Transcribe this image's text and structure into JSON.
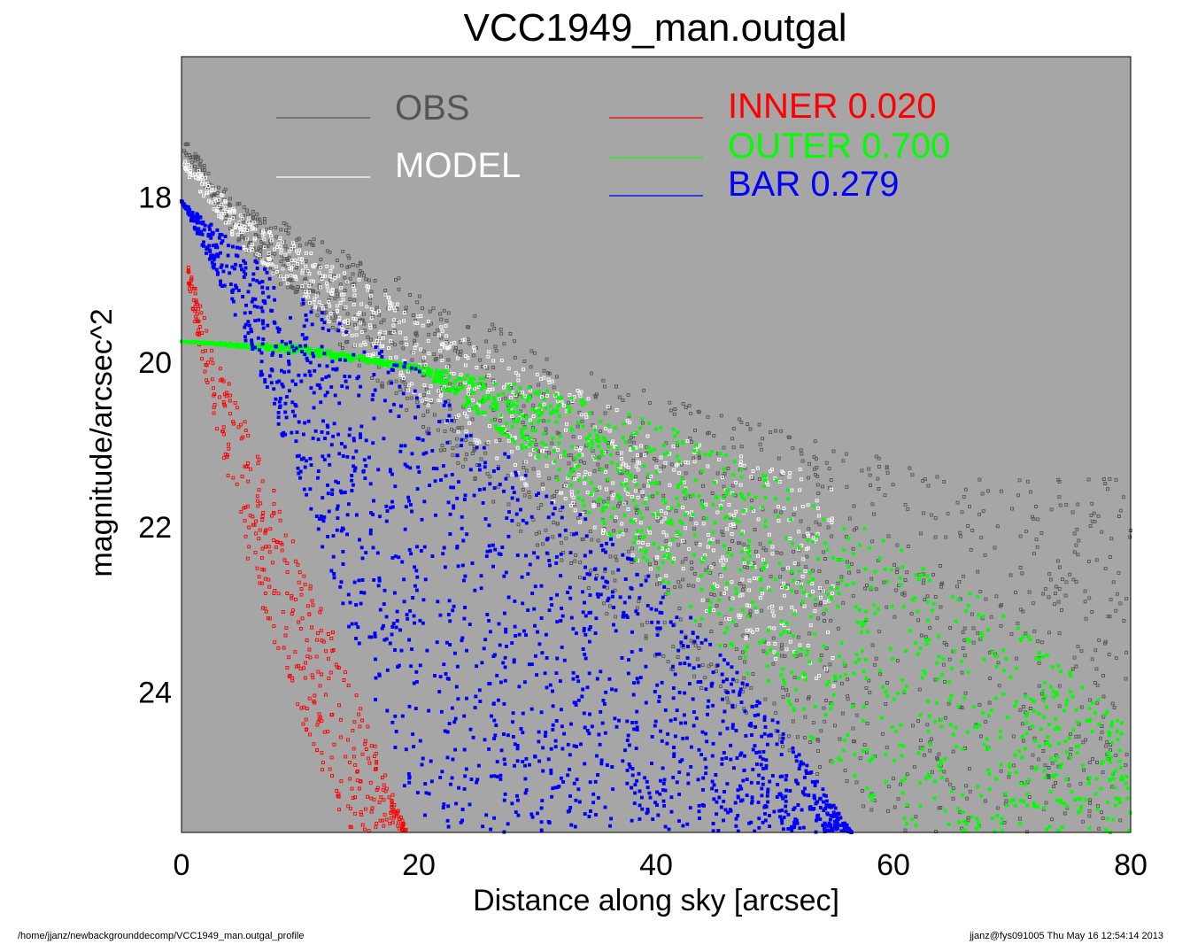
{
  "chart_data": {
    "type": "scatter",
    "title": "VCC1949_man.outgal",
    "xlabel": "Distance along sky [arcsec]",
    "ylabel": "magnitude/arcsec^2",
    "xlim": [
      0,
      80
    ],
    "ylim": [
      25.7,
      16.3
    ],
    "y_inverted": true,
    "x_ticks": [
      "0",
      "20",
      "40",
      "60",
      "80"
    ],
    "x_tick_values": [
      0,
      20,
      40,
      60,
      80
    ],
    "y_ticks": [
      "18",
      "20",
      "22",
      "24"
    ],
    "y_tick_values": [
      18,
      20,
      22,
      24
    ],
    "plot_background": "#a6a6a6",
    "grid": false,
    "legend_position": "top",
    "legend": [
      {
        "name": "OBS",
        "value": "",
        "color": "#555555"
      },
      {
        "name": "MODEL",
        "value": "",
        "color": "#ffffff"
      },
      {
        "name": "INNER",
        "value": "0.020",
        "color": "#ff0000"
      },
      {
        "name": "OUTER",
        "value": "0.700",
        "color": "#00ff00"
      },
      {
        "name": "BAR",
        "value": "0.279",
        "color": "#0000ff"
      }
    ],
    "series": [
      {
        "name": "OBS",
        "color": "#555555",
        "description_points": {
          "x": [
            0.2,
            2,
            5,
            10,
            20,
            30,
            40,
            50,
            60,
            70,
            80
          ],
          "y_bright_edge": [
            17.3,
            17.6,
            18.1,
            18.4,
            19.1,
            19.8,
            20.4,
            20.8,
            21.2,
            21.4,
            21.4
          ],
          "y_faint_edge": [
            17.6,
            17.9,
            18.6,
            19.3,
            20.8,
            22.3,
            23.6,
            24.6,
            25.7,
            25.7,
            25.7
          ]
        }
      },
      {
        "name": "MODEL",
        "color": "#ffffff",
        "description_points": {
          "x": [
            0.2,
            5,
            10,
            20,
            30,
            40,
            50,
            55
          ],
          "y_bright_edge": [
            17.5,
            18.2,
            18.6,
            19.4,
            20.1,
            20.8,
            21.2,
            21.4
          ],
          "y_faint_edge": [
            17.7,
            18.6,
            19.2,
            20.5,
            21.6,
            22.6,
            23.6,
            24.1
          ]
        }
      },
      {
        "name": "INNER",
        "color": "#ff0000",
        "description_points": {
          "x": [
            0.5,
            2,
            5,
            10,
            14,
            19
          ],
          "y_bright_edge": [
            18.8,
            19.5,
            20.6,
            22.3,
            23.7,
            25.7
          ],
          "y_faint_edge": [
            19.0,
            20.2,
            22.2,
            24.3,
            25.7,
            25.7
          ]
        }
      },
      {
        "name": "OUTER",
        "color": "#00ff00",
        "description_points": {
          "x": [
            0,
            10,
            20,
            30,
            40,
            50,
            60,
            70,
            80
          ],
          "y_bright_edge": [
            19.75,
            19.8,
            20.05,
            20.3,
            20.7,
            21.4,
            22.2,
            23.1,
            24.4
          ],
          "y_faint_edge": [
            19.75,
            19.9,
            20.1,
            21.2,
            22.7,
            24.1,
            25.7,
            25.7,
            25.7
          ]
        }
      },
      {
        "name": "BAR",
        "color": "#0000ff",
        "description_points": {
          "x": [
            0,
            5,
            10,
            20,
            30,
            40,
            50,
            56.5
          ],
          "y_bright_edge": [
            18.05,
            18.6,
            19.2,
            20.1,
            21.4,
            22.6,
            24.3,
            25.7
          ],
          "y_faint_edge": [
            18.05,
            19.6,
            21.5,
            25.7,
            25.7,
            25.7,
            25.7,
            25.7
          ]
        }
      }
    ]
  },
  "footer": {
    "left": "/home/jjanz/newbackgrounddecomp/VCC1949_man.outgal_profile",
    "right": "jjanz@fys091005  Thu May 16 12:54:14 2013"
  }
}
